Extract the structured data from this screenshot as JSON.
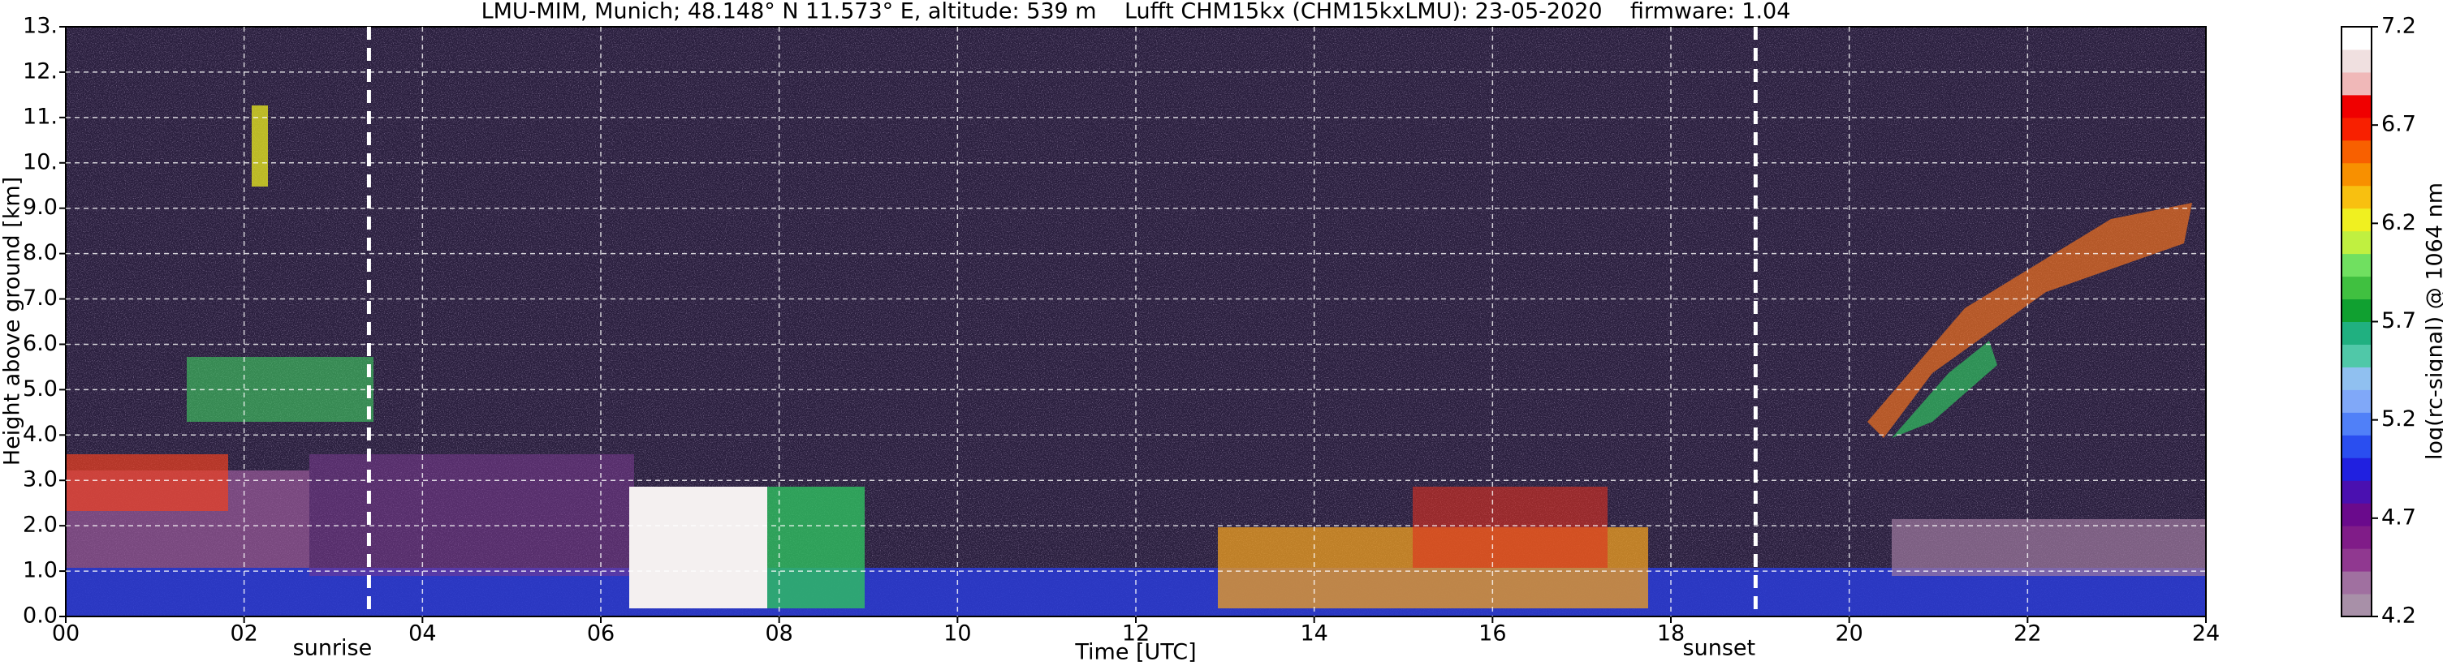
{
  "chart_data": {
    "type": "heatmap",
    "title": "LMU-MIM, Munich; 48.148° N 11.573° E, altitude: 539 m    Lufft CHM15kx (CHM15kxLMU): 23-05-2020    firmware: 1.04",
    "xlabel": "Time [UTC]",
    "ylabel": "Height above ground [km]",
    "xlim": [
      0,
      24
    ],
    "xticks": [
      {
        "value": 0,
        "label": "00"
      },
      {
        "value": 2,
        "label": "02"
      },
      {
        "value": 4,
        "label": "04"
      },
      {
        "value": 6,
        "label": "06"
      },
      {
        "value": 8,
        "label": "08"
      },
      10,
      12,
      14,
      16,
      18,
      20,
      22,
      24
    ],
    "ylim": [
      0,
      13
    ],
    "yticks": [
      {
        "value": 0,
        "label": "0.0"
      },
      {
        "value": 1,
        "label": "1.0"
      },
      {
        "value": 2,
        "label": "2.0"
      },
      {
        "value": 3,
        "label": "3.0"
      },
      {
        "value": 4,
        "label": "4.0"
      },
      {
        "value": 5,
        "label": "5.0"
      },
      {
        "value": 6,
        "label": "6.0"
      },
      {
        "value": 7,
        "label": "7.0"
      },
      {
        "value": 8,
        "label": "8.0"
      },
      {
        "value": 9,
        "label": "9.0"
      },
      {
        "value": 10,
        "label": "10."
      },
      {
        "value": 11,
        "label": "11."
      },
      {
        "value": 12,
        "label": "12."
      },
      {
        "value": 13,
        "label": "13."
      }
    ],
    "grid": true,
    "annotations": [
      {
        "text": "sunrise",
        "x": 3.4
      },
      {
        "text": "sunset",
        "x": 18.95
      }
    ],
    "colorbar": {
      "label": "log(rc-signal) @ 1064 nm",
      "clim": [
        4.2,
        7.2
      ],
      "ticks": [
        4.2,
        4.7,
        5.2,
        5.7,
        6.2,
        6.7,
        7.2
      ],
      "colors": [
        "#a890a8",
        "#a070a0",
        "#903890",
        "#801c88",
        "#6a0a8c",
        "#4a10b0",
        "#2020e0",
        "#2a4ef0",
        "#5080f8",
        "#80a8f8",
        "#90c0f0",
        "#50c8a8",
        "#20b080",
        "#10a030",
        "#40c040",
        "#70e060",
        "#c0f040",
        "#f0f020",
        "#f8c010",
        "#f89000",
        "#f86000",
        "#f82000",
        "#f00000",
        "#f0b8b8",
        "#f0e0e0",
        "#ffffff"
      ]
    }
  }
}
